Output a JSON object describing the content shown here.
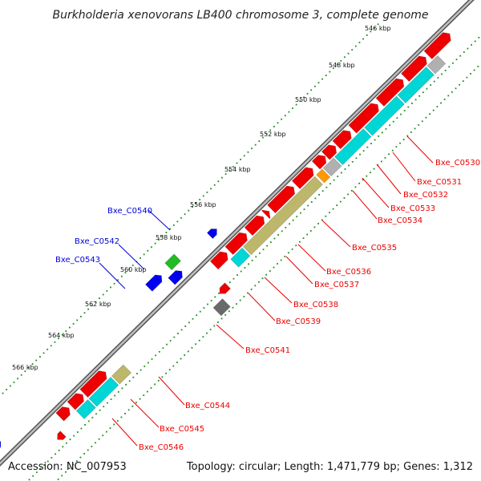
{
  "title": "Burkholderia xenovorans LB400 chromosome 3, complete genome",
  "footer": {
    "accession": "Accession: NC_007953",
    "summary": "Topology: circular; Length: 1,471,779 bp; Genes: 1,312"
  },
  "ticks": [
    "546 kbp",
    "548 kbp",
    "550 kbp",
    "552 kbp",
    "554 kbp",
    "556 kbp",
    "558 kbp",
    "560 kbp",
    "562 kbp",
    "564 kbp",
    "566 kbp"
  ],
  "colors": {
    "red_cds": "#ee0000",
    "cyan_rna": "#00d6d6",
    "khaki": "#bdb76b",
    "gray": "#b0b0b0",
    "darkgray": "#6a6a6a",
    "orange": "#ff9900",
    "blue": "#0000ee",
    "green": "#22bb22",
    "backbone": "#808080",
    "dots": "#228b22"
  },
  "labels_right": [
    "Bxe_C0530",
    "Bxe_C0531",
    "Bxe_C0532",
    "Bxe_C0533",
    "Bxe_C0534",
    "Bxe_C0535",
    "Bxe_C0536",
    "Bxe_C0537",
    "Bxe_C0538",
    "Bxe_C0539",
    "Bxe_C0541",
    "Bxe_C0544",
    "Bxe_C0545",
    "Bxe_C0546"
  ],
  "labels_left": [
    "Bxe_C0540",
    "Bxe_C0542",
    "Bxe_C0543"
  ]
}
